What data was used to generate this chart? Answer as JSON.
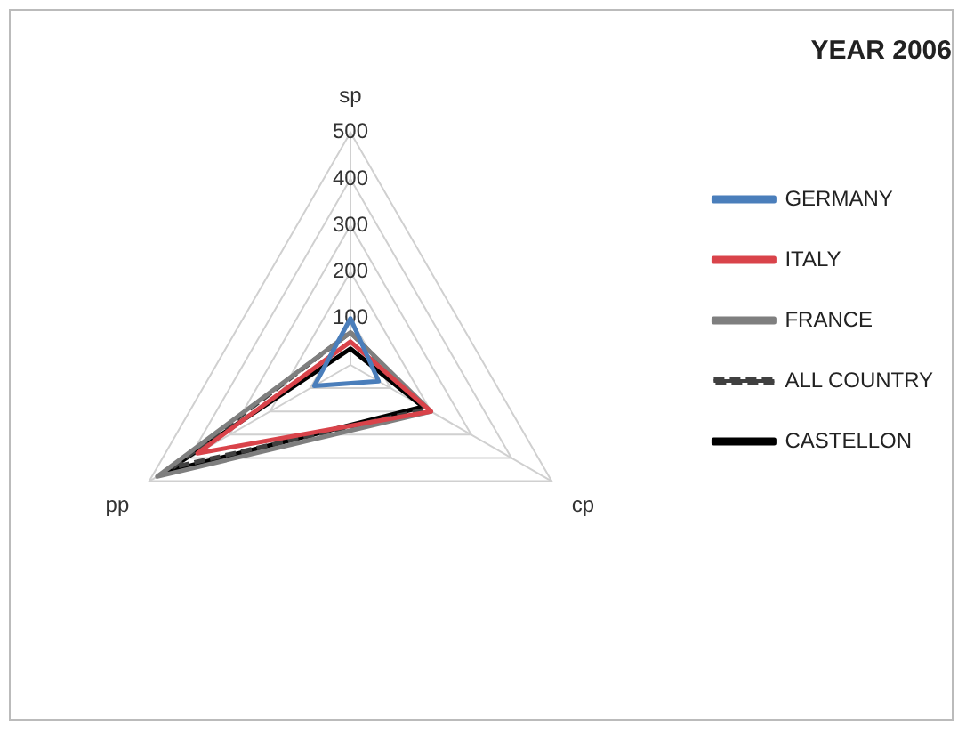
{
  "chart_data": {
    "type": "radar",
    "title": "YEAR 2006",
    "categories": [
      "sp",
      "cp",
      "pp"
    ],
    "series": [
      {
        "name": "GERMANY",
        "color": "#4a7ebb",
        "values": [
          100,
          70,
          90
        ]
      },
      {
        "name": "ITALY",
        "color": "#d9434a",
        "values": [
          50,
          200,
          380
        ]
      },
      {
        "name": "FRANCE",
        "color": "#7f7f7f",
        "values": [
          70,
          200,
          480
        ]
      },
      {
        "name": "ALL COUNTRY",
        "color": "#404040",
        "values": [
          70,
          190,
          440
        ],
        "line_style": "dashed"
      },
      {
        "name": "CASTELLON",
        "color": "#000000",
        "values": [
          35,
          180,
          460
        ]
      }
    ],
    "ylim": [
      0,
      500
    ],
    "yticks": [
      100,
      200,
      300,
      400,
      500
    ],
    "grid": true,
    "legend": "right",
    "marker": "none",
    "line_style": "solid"
  }
}
